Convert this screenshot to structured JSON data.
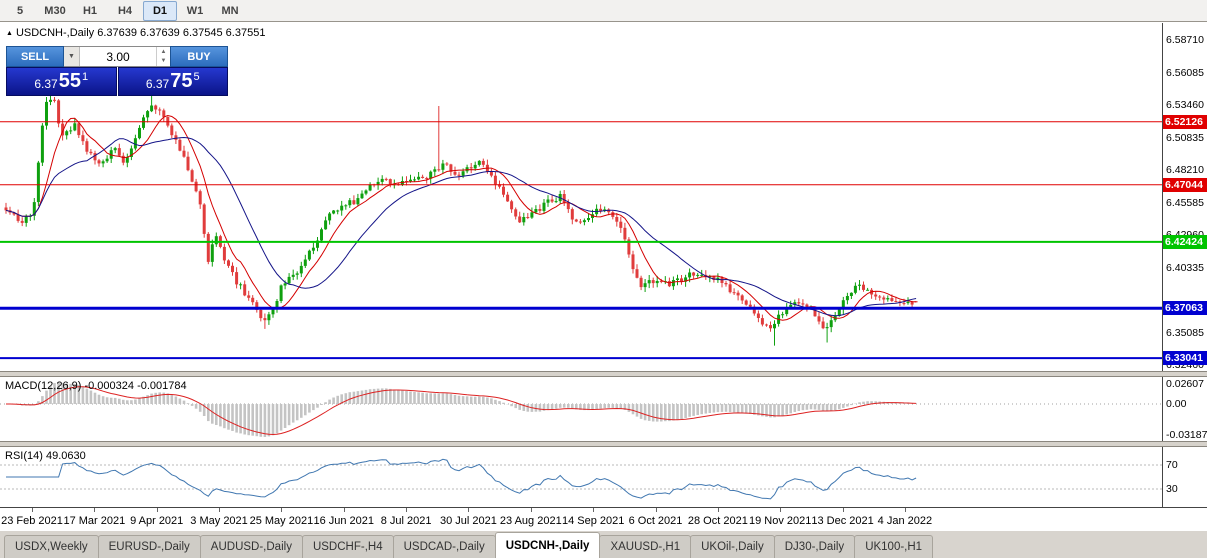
{
  "toolbar": {
    "timeframes": [
      "5",
      "M30",
      "H1",
      "H4",
      "D1",
      "W1",
      "MN"
    ],
    "selected": "D1"
  },
  "chart": {
    "title": "USDCNH-,Daily 6.37639 6.37639 6.37545 6.37551",
    "symbol": "USDCNH-",
    "period": "Daily",
    "ohlc": {
      "open": "6.37639",
      "high": "6.37639",
      "low": "6.37545",
      "close": "6.37551"
    }
  },
  "trade_panel": {
    "sell_label": "SELL",
    "buy_label": "BUY",
    "volume": "3.00",
    "sell_price": {
      "base": "6.37",
      "big": "55",
      "sup": "1"
    },
    "buy_price": {
      "base": "6.37",
      "big": "75",
      "sup": "5"
    }
  },
  "price_axis": {
    "ticks": [
      {
        "label": "6.58710",
        "value": 6.5871
      },
      {
        "label": "6.56085",
        "value": 6.56085
      },
      {
        "label": "6.53460",
        "value": 6.5346
      },
      {
        "label": "6.50835",
        "value": 6.50835
      },
      {
        "label": "6.48210",
        "value": 6.4821
      },
      {
        "label": "6.45585",
        "value": 6.45585
      },
      {
        "label": "6.42960",
        "value": 6.4296
      },
      {
        "label": "6.40335",
        "value": 6.40335
      },
      {
        "label": "6.35085",
        "value": 6.35085
      },
      {
        "label": "6.32460",
        "value": 6.3246
      }
    ]
  },
  "hlines": [
    {
      "label": "6.52126",
      "value": 6.52126,
      "color": "#e00000",
      "width": 1
    },
    {
      "label": "6.47044",
      "value": 6.47044,
      "color": "#e00000",
      "width": 1
    },
    {
      "label": "6.42424",
      "value": 6.42424,
      "color": "#00c400",
      "width": 2
    },
    {
      "label": "6.37063",
      "value": 6.37063,
      "color": "#0000d0",
      "width": 3
    },
    {
      "label": "6.33041",
      "value": 6.33041,
      "color": "#0000d0",
      "width": 2
    }
  ],
  "macd": {
    "label": "MACD(12,26,9) -0.000324 -0.001784",
    "axis_top": "0.02607",
    "axis_zero": "0.00",
    "axis_bottom": "-0.03187"
  },
  "rsi": {
    "label": "RSI(14) 49.0630",
    "levels": [
      {
        "label": "70",
        "value": 70
      },
      {
        "label": "30",
        "value": 30
      }
    ]
  },
  "date_axis": [
    "23 Feb 2021",
    "17 Mar 2021",
    "9 Apr 2021",
    "3 May 2021",
    "25 May 2021",
    "16 Jun 2021",
    "8 Jul 2021",
    "30 Jul 2021",
    "23 Aug 2021",
    "14 Sep 2021",
    "6 Oct 2021",
    "28 Oct 2021",
    "19 Nov 2021",
    "13 Dec 2021",
    "4 Jan 2022"
  ],
  "tabs": {
    "items": [
      "USDX,Weekly",
      "EURUSD-,Daily",
      "AUDUSD-,Daily",
      "USDCHF-,H4",
      "USDCAD-,Daily",
      "USDCNH-,Daily",
      "XAUUSD-,H1",
      "UKOil-,Daily",
      "DJ30-,Daily",
      "UK100-,H1"
    ],
    "active": "USDCNH-,Daily"
  },
  "colors": {
    "bull": "#0fa00f",
    "bear": "#e03c3c",
    "ma_fast": "#d40000",
    "ma_slow": "#141488",
    "macd_hist": "#c4c4c4",
    "macd_signal": "#dd2222",
    "rsi_line": "#4077b0"
  },
  "chart_data": {
    "type": "candlestick",
    "symbol": "USDCNH-",
    "period": "Daily",
    "last": {
      "open": 6.37639,
      "high": 6.37639,
      "low": 6.37545,
      "close": 6.37551
    },
    "y_range": [
      6.32,
      6.601
    ],
    "x_labels": [
      "23 Feb 2021",
      "17 Mar 2021",
      "9 Apr 2021",
      "3 May 2021",
      "25 May 2021",
      "16 Jun 2021",
      "8 Jul 2021",
      "30 Jul 2021",
      "23 Aug 2021",
      "14 Sep 2021",
      "6 Oct 2021",
      "28 Oct 2021",
      "19 Nov 2021",
      "13 Dec 2021",
      "4 Jan 2022"
    ],
    "horizontal_levels": [
      6.52126,
      6.47044,
      6.42424,
      6.37063,
      6.33041
    ],
    "indicators": [
      "MACD(12,26,9)",
      "RSI(14)"
    ],
    "price_path_anchors": [
      [
        0,
        6.452
      ],
      [
        0.015,
        6.44
      ],
      [
        0.03,
        6.448
      ],
      [
        0.042,
        6.534
      ],
      [
        0.052,
        6.541
      ],
      [
        0.062,
        6.508
      ],
      [
        0.075,
        6.519
      ],
      [
        0.09,
        6.495
      ],
      [
        0.105,
        6.488
      ],
      [
        0.118,
        6.5
      ],
      [
        0.132,
        6.488
      ],
      [
        0.148,
        6.521
      ],
      [
        0.16,
        6.536
      ],
      [
        0.172,
        6.528
      ],
      [
        0.185,
        6.508
      ],
      [
        0.2,
        6.484
      ],
      [
        0.212,
        6.46
      ],
      [
        0.222,
        6.41
      ],
      [
        0.23,
        6.432
      ],
      [
        0.243,
        6.405
      ],
      [
        0.255,
        6.39
      ],
      [
        0.268,
        6.378
      ],
      [
        0.282,
        6.36
      ],
      [
        0.293,
        6.37
      ],
      [
        0.305,
        6.392
      ],
      [
        0.32,
        6.4
      ],
      [
        0.338,
        6.42
      ],
      [
        0.352,
        6.443
      ],
      [
        0.368,
        6.452
      ],
      [
        0.385,
        6.458
      ],
      [
        0.4,
        6.47
      ],
      [
        0.415,
        6.478
      ],
      [
        0.428,
        6.468
      ],
      [
        0.442,
        6.477
      ],
      [
        0.455,
        6.474
      ],
      [
        0.47,
        6.48
      ],
      [
        0.483,
        6.488
      ],
      [
        0.495,
        6.477
      ],
      [
        0.51,
        6.485
      ],
      [
        0.523,
        6.49
      ],
      [
        0.537,
        6.473
      ],
      [
        0.552,
        6.455
      ],
      [
        0.565,
        6.442
      ],
      [
        0.58,
        6.447
      ],
      [
        0.595,
        6.456
      ],
      [
        0.61,
        6.461
      ],
      [
        0.622,
        6.445
      ],
      [
        0.635,
        6.44
      ],
      [
        0.648,
        6.452
      ],
      [
        0.662,
        6.447
      ],
      [
        0.675,
        6.438
      ],
      [
        0.687,
        6.405
      ],
      [
        0.697,
        6.388
      ],
      [
        0.71,
        6.392
      ],
      [
        0.725,
        6.39
      ],
      [
        0.74,
        6.393
      ],
      [
        0.755,
        6.399
      ],
      [
        0.77,
        6.397
      ],
      [
        0.785,
        6.392
      ],
      [
        0.8,
        6.383
      ],
      [
        0.815,
        6.373
      ],
      [
        0.828,
        6.362
      ],
      [
        0.84,
        6.352
      ],
      [
        0.852,
        6.367
      ],
      [
        0.865,
        6.377
      ],
      [
        0.878,
        6.374
      ],
      [
        0.89,
        6.366
      ],
      [
        0.9,
        6.354
      ],
      [
        0.912,
        6.366
      ],
      [
        0.925,
        6.382
      ],
      [
        0.937,
        6.389
      ],
      [
        0.95,
        6.381
      ],
      [
        0.962,
        6.3765
      ],
      [
        1,
        6.3755
      ]
    ],
    "spikes": [
      {
        "t": 0.048,
        "high": 6.553
      },
      {
        "t": 0.158,
        "high": 6.545
      },
      {
        "t": 0.286,
        "low": 6.354
      },
      {
        "t": 0.475,
        "high": 6.534
      },
      {
        "t": 0.843,
        "low": 6.3405
      },
      {
        "t": 0.902,
        "low": 6.343
      }
    ]
  }
}
